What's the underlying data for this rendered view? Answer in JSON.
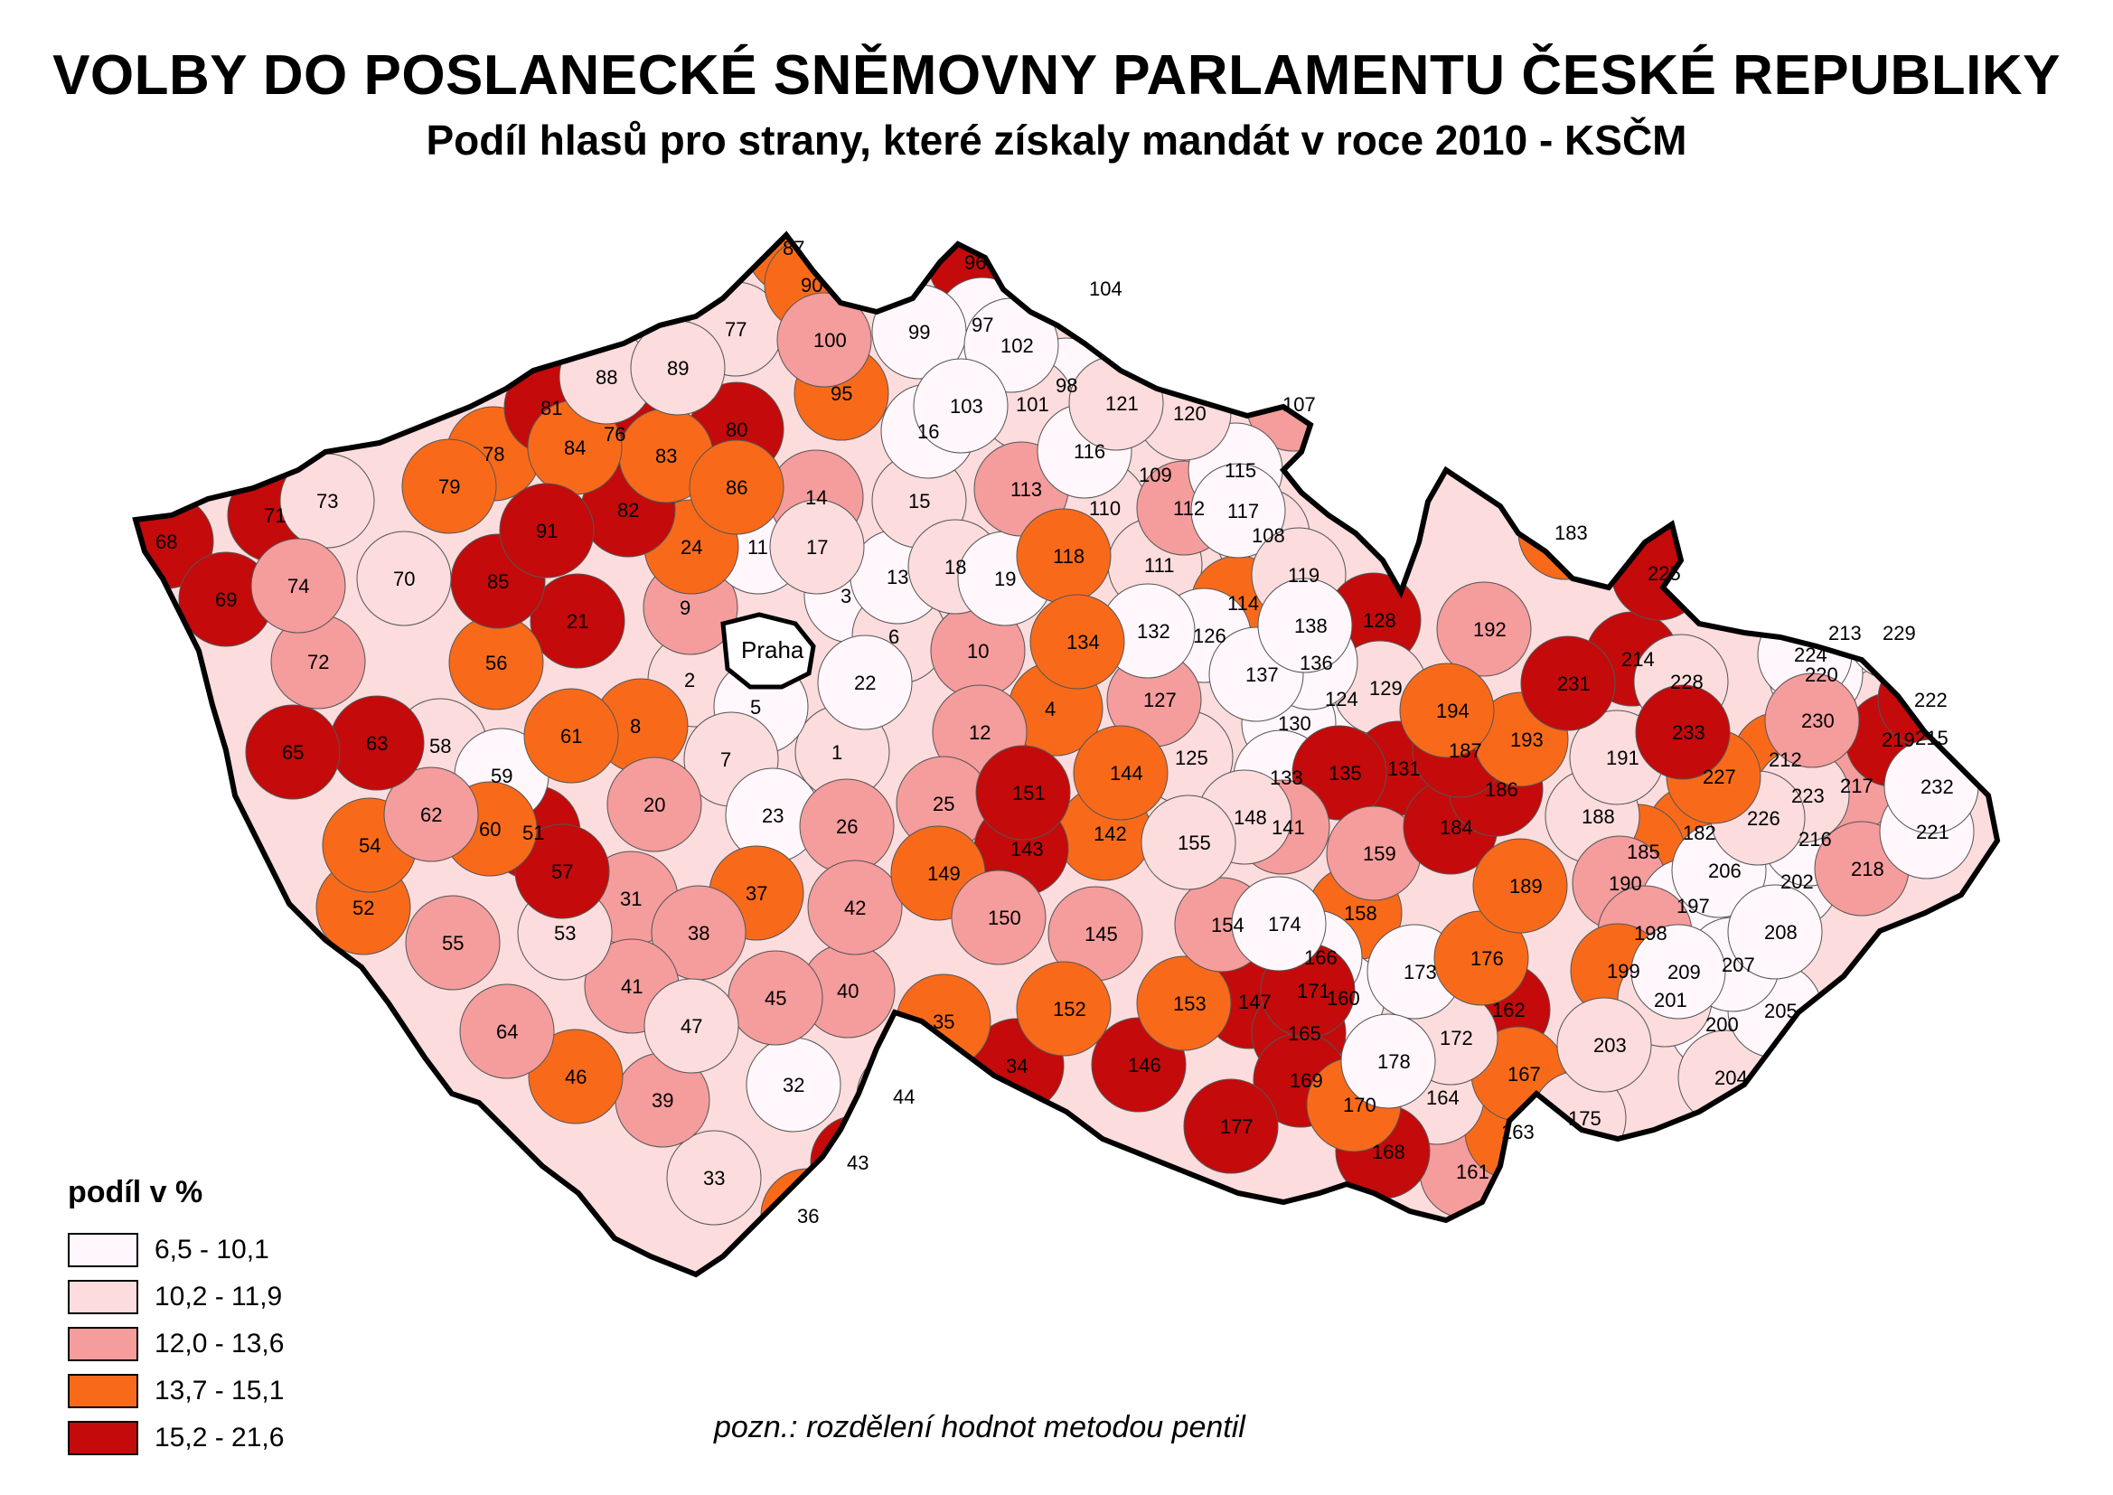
{
  "title": "VOLBY DO POSLANECKÉ SNĚMOVNY PARLAMENTU ČESKÉ REPUBLIKY",
  "subtitle": "Podíl hlasů pro strany, které získaly mandát v roce 2010 - KSČM",
  "capital_label": "Praha",
  "colors": {
    "class1": "#fff7fb",
    "class2": "#fcdcdc",
    "class3": "#f59c9c",
    "class4": "#f86a1a",
    "class5": "#c40a0a"
  },
  "legend": {
    "title": "podíl v %",
    "items": [
      {
        "label": "6,5 - 10,1",
        "color": "#fff7fb"
      },
      {
        "label": "10,2 - 11,9",
        "color": "#fcdcdc"
      },
      {
        "label": "12,0 - 13,6",
        "color": "#f59c9c"
      },
      {
        "label": "13,7 - 15,1",
        "color": "#f86a1a"
      },
      {
        "label": "15,2 - 21,6",
        "color": "#c40a0a"
      }
    ]
  },
  "note": "pozn.: rozdělení hodnot metodou pentil",
  "districts": {
    "1": 2,
    "2": 2,
    "3": 1,
    "4": 4,
    "5": 1,
    "6": 2,
    "7": 2,
    "8": 4,
    "9": 3,
    "10": 3,
    "11": 1,
    "12": 3,
    "13": 1,
    "14": 3,
    "15": 2,
    "16": 1,
    "17": 2,
    "18": 2,
    "19": 1,
    "20": 3,
    "21": 5,
    "22": 1,
    "23": 1,
    "24": 4,
    "25": 3,
    "26": 3,
    "31": 3,
    "32": 1,
    "33": 2,
    "34": 5,
    "35": 4,
    "36": 4,
    "37": 4,
    "38": 3,
    "39": 3,
    "40": 3,
    "41": 3,
    "42": 3,
    "43": 5,
    "44": 2,
    "45": 3,
    "46": 4,
    "47": 2,
    "51": 5,
    "52": 4,
    "53": 2,
    "54": 4,
    "55": 3,
    "56": 4,
    "57": 5,
    "58": 2,
    "59": 1,
    "60": 4,
    "61": 4,
    "62": 3,
    "63": 5,
    "64": 3,
    "65": 5,
    "68": 5,
    "69": 5,
    "70": 2,
    "71": 5,
    "72": 3,
    "73": 2,
    "74": 3,
    "76": 5,
    "77": 2,
    "78": 4,
    "79": 4,
    "80": 5,
    "81": 5,
    "82": 5,
    "83": 4,
    "84": 4,
    "85": 5,
    "86": 4,
    "87": 4,
    "88": 2,
    "89": 2,
    "90": 4,
    "91": 5,
    "95": 4,
    "96": 5,
    "97": 1,
    "98": 1,
    "99": 1,
    "100": 3,
    "101": 2,
    "102": 1,
    "103": 1,
    "104": 1,
    "107": 3,
    "108": 2,
    "109": 2,
    "110": 2,
    "111": 2,
    "112": 3,
    "113": 3,
    "114": 4,
    "115": 1,
    "116": 1,
    "117": 1,
    "118": 4,
    "119": 2,
    "120": 2,
    "121": 2,
    "124": 1,
    "125": 2,
    "126": 1,
    "127": 3,
    "128": 5,
    "129": 2,
    "130": 1,
    "131": 5,
    "132": 1,
    "133": 1,
    "134": 4,
    "135": 5,
    "136": 1,
    "137": 1,
    "138": 1,
    "141": 3,
    "142": 4,
    "143": 5,
    "144": 4,
    "145": 3,
    "146": 5,
    "147": 5,
    "148": 2,
    "149": 4,
    "150": 3,
    "151": 5,
    "152": 4,
    "153": 4,
    "154": 3,
    "155": 2,
    "158": 4,
    "159": 3,
    "160": 1,
    "161": 3,
    "162": 5,
    "163": 4,
    "164": 2,
    "165": 5,
    "166": 1,
    "167": 4,
    "168": 5,
    "169": 5,
    "170": 4,
    "171": 5,
    "172": 2,
    "173": 1,
    "174": 1,
    "175": 2,
    "176": 4,
    "177": 5,
    "178": 1,
    "182": 4,
    "183": 4,
    "184": 5,
    "185": 4,
    "186": 5,
    "187": 5,
    "188": 2,
    "189": 4,
    "190": 3,
    "191": 2,
    "192": 3,
    "193": 4,
    "194": 4,
    "197": 1,
    "198": 3,
    "199": 4,
    "200": 1,
    "201": 2,
    "202": 1,
    "203": 2,
    "204": 2,
    "205": 1,
    "206": 1,
    "207": 1,
    "208": 1,
    "209": 1,
    "212": 4,
    "213": 1,
    "214": 5,
    "215": 1,
    "216": 1,
    "217": 3,
    "218": 3,
    "219": 5,
    "220": 1,
    "221": 1,
    "222": 5,
    "223": 2,
    "224": 1,
    "225": 5,
    "226": 2,
    "227": 4,
    "228": 2,
    "229": 1,
    "230": 3,
    "231": 5,
    "232": 1,
    "233": 5
  }
}
